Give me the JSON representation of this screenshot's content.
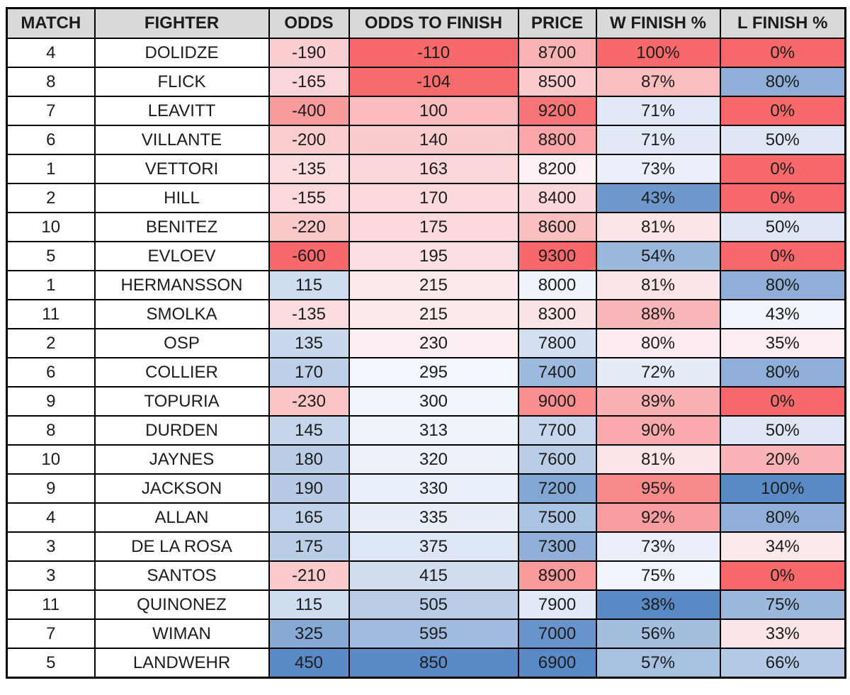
{
  "styles": {
    "header_bg": "#D9D9D9",
    "default_cell_bg": "#FFFFFF",
    "border_color": "#000000",
    "text_color": "#1C1C1C",
    "page_bg": "#FFFFFF"
  },
  "chart_data": {
    "type": "table",
    "columns": [
      "MATCH",
      "FIGHTER",
      "ODDS",
      "ODDS TO FINISH",
      "PRICE",
      "W FINISH %",
      "L FINISH %"
    ],
    "field_order": [
      "match",
      "fighter",
      "odds",
      "odds_to_finish",
      "price",
      "w_finish_pct",
      "l_finish_pct"
    ],
    "conditional_formatting": {
      "description": "Excel-style 3-color scale applied per column",
      "min_color": "#F8696B",
      "mid_color": "#FCFCFF",
      "max_color": "#5A8AC6"
    },
    "rows": [
      {
        "match": "4",
        "fighter": "DOLIDZE",
        "odds": "-190",
        "odds_to_finish": "-110",
        "price": "8700",
        "w_finish_pct": "100%",
        "l_finish_pct": "0%",
        "cell_colors": [
          "#FFFFFF",
          "#FFFFFF",
          "#FBCFD2",
          "#F8696B",
          "#FAB3B5",
          "#F8696B",
          "#F8696B"
        ]
      },
      {
        "match": "8",
        "fighter": "FLICK",
        "odds": "-165",
        "odds_to_finish": "-104",
        "price": "8500",
        "w_finish_pct": "87%",
        "l_finish_pct": "80%",
        "cell_colors": [
          "#FFFFFF",
          "#FFFFFF",
          "#FBD5D8",
          "#F86B6D",
          "#FBCBCE",
          "#FABEC1",
          "#8FAFD9"
        ]
      },
      {
        "match": "7",
        "fighter": "LEAVITT",
        "odds": "-400",
        "odds_to_finish": "100",
        "price": "9200",
        "w_finish_pct": "71%",
        "l_finish_pct": "0%",
        "cell_colors": [
          "#FFFFFF",
          "#FFFFFF",
          "#F99B9D",
          "#FABCBE",
          "#F87577",
          "#E1E9F6",
          "#F8696B"
        ]
      },
      {
        "match": "6",
        "fighter": "VILLANTE",
        "odds": "-200",
        "odds_to_finish": "140",
        "price": "8800",
        "w_finish_pct": "71%",
        "l_finish_pct": "50%",
        "cell_colors": [
          "#FFFFFF",
          "#FFFFFF",
          "#FBCDCF",
          "#FBCCCE",
          "#FAA6A9",
          "#E1E9F6",
          "#DFE7F5"
        ]
      },
      {
        "match": "1",
        "fighter": "VETTORI",
        "odds": "-135",
        "odds_to_finish": "163",
        "price": "8200",
        "w_finish_pct": "73%",
        "l_finish_pct": "0%",
        "cell_colors": [
          "#FFFFFF",
          "#FFFFFF",
          "#FBDDE0",
          "#FBD5D7",
          "#FCF0F3",
          "#EAEFF9",
          "#F8696B"
        ]
      },
      {
        "match": "2",
        "fighter": "HILL",
        "odds": "-155",
        "odds_to_finish": "170",
        "price": "8400",
        "w_finish_pct": "43%",
        "l_finish_pct": "0%",
        "cell_colors": [
          "#FFFFFF",
          "#FFFFFF",
          "#FBD8DB",
          "#FBD8DA",
          "#FBD7DA",
          "#6F98CD",
          "#F8696B"
        ]
      },
      {
        "match": "10",
        "fighter": "BENITEZ",
        "odds": "-220",
        "odds_to_finish": "175",
        "price": "8600",
        "w_finish_pct": "81%",
        "l_finish_pct": "50%",
        "cell_colors": [
          "#FFFFFF",
          "#FFFFFF",
          "#FBC8CA",
          "#FBD9DC",
          "#FABFC1",
          "#FBE5E8",
          "#DFE7F5"
        ]
      },
      {
        "match": "5",
        "fighter": "EVLOEV",
        "odds": "-600",
        "odds_to_finish": "195",
        "price": "9300",
        "w_finish_pct": "54%",
        "l_finish_pct": "0%",
        "cell_colors": [
          "#FFFFFF",
          "#FFFFFF",
          "#F8696B",
          "#FBE1E4",
          "#F8696B",
          "#9CB8DD",
          "#F8696B"
        ]
      },
      {
        "match": "1",
        "fighter": "HERMANSSON",
        "odds": "115",
        "odds_to_finish": "215",
        "price": "8000",
        "w_finish_pct": "81%",
        "l_finish_pct": "80%",
        "cell_colors": [
          "#FFFFFF",
          "#FFFFFF",
          "#D0DDF0",
          "#FBE9EC",
          "#EFF3FA",
          "#FBE5E8",
          "#8FAFD9"
        ]
      },
      {
        "match": "11",
        "fighter": "SMOLKA",
        "odds": "-135",
        "odds_to_finish": "215",
        "price": "8300",
        "w_finish_pct": "88%",
        "l_finish_pct": "43%",
        "cell_colors": [
          "#FFFFFF",
          "#FFFFFF",
          "#FBDDE0",
          "#FBE9EC",
          "#FBE4E6",
          "#FAB7BA",
          "#F1F5FB"
        ]
      },
      {
        "match": "2",
        "fighter": "OSP",
        "odds": "135",
        "odds_to_finish": "230",
        "price": "7800",
        "w_finish_pct": "80%",
        "l_finish_pct": "35%",
        "cell_colors": [
          "#FFFFFF",
          "#FFFFFF",
          "#C9D8ED",
          "#FCEFF2",
          "#D4E0F1",
          "#FCECEF",
          "#FCEDF0"
        ]
      },
      {
        "match": "6",
        "fighter": "COLLIER",
        "odds": "170",
        "odds_to_finish": "295",
        "price": "7400",
        "w_finish_pct": "72%",
        "l_finish_pct": "80%",
        "cell_colors": [
          "#FFFFFF",
          "#FFFFFF",
          "#BDCFE9",
          "#F3F6FC",
          "#9EBADE",
          "#E5ECF7",
          "#8FAFD9"
        ]
      },
      {
        "match": "9",
        "fighter": "TOPURIA",
        "odds": "-230",
        "odds_to_finish": "300",
        "price": "9000",
        "w_finish_pct": "89%",
        "l_finish_pct": "0%",
        "cell_colors": [
          "#FFFFFF",
          "#FFFFFF",
          "#FBC5C8",
          "#F2F5FB",
          "#F98E90",
          "#FAB1B3",
          "#F8696B"
        ]
      },
      {
        "match": "8",
        "fighter": "DURDEN",
        "odds": "145",
        "odds_to_finish": "313",
        "price": "7700",
        "w_finish_pct": "90%",
        "l_finish_pct": "50%",
        "cell_colors": [
          "#FFFFFF",
          "#FFFFFF",
          "#C5D6EC",
          "#EEF2FA",
          "#C6D6EC",
          "#FAAAAD",
          "#DFE7F5"
        ]
      },
      {
        "match": "10",
        "fighter": "JAYNES",
        "odds": "180",
        "odds_to_finish": "320",
        "price": "7600",
        "w_finish_pct": "81%",
        "l_finish_pct": "20%",
        "cell_colors": [
          "#FFFFFF",
          "#FFFFFF",
          "#B9CDE7",
          "#ECF1F9",
          "#B9CDE7",
          "#FBE5E8",
          "#FAB4B7"
        ]
      },
      {
        "match": "9",
        "fighter": "JACKSON",
        "odds": "190",
        "odds_to_finish": "330",
        "price": "7200",
        "w_finish_pct": "95%",
        "l_finish_pct": "100%",
        "cell_colors": [
          "#FFFFFF",
          "#FFFFFF",
          "#B6CAE6",
          "#E9EFF8",
          "#83A7D4",
          "#F98A8C",
          "#5A8AC6"
        ]
      },
      {
        "match": "4",
        "fighter": "ALLAN",
        "odds": "165",
        "odds_to_finish": "335",
        "price": "7500",
        "w_finish_pct": "92%",
        "l_finish_pct": "80%",
        "cell_colors": [
          "#FFFFFF",
          "#FFFFFF",
          "#BED1E9",
          "#E8EEF8",
          "#ABC3E3",
          "#F99DA0",
          "#8FAFD9"
        ]
      },
      {
        "match": "3",
        "fighter": "DE LA ROSA",
        "odds": "175",
        "odds_to_finish": "375",
        "price": "7300",
        "w_finish_pct": "73%",
        "l_finish_pct": "34%",
        "cell_colors": [
          "#FFFFFF",
          "#FFFFFF",
          "#BBCEE8",
          "#DDE6F4",
          "#90B0D9",
          "#EAEFF9",
          "#FBE9EC"
        ]
      },
      {
        "match": "3",
        "fighter": "SANTOS",
        "odds": "-210",
        "odds_to_finish": "415",
        "price": "8900",
        "w_finish_pct": "75%",
        "l_finish_pct": "0%",
        "cell_colors": [
          "#FFFFFF",
          "#FFFFFF",
          "#FBCACD",
          "#D2DEF0",
          "#F99A9C",
          "#F2F5FB",
          "#F8696B"
        ]
      },
      {
        "match": "11",
        "fighter": "QUINONEZ",
        "odds": "115",
        "odds_to_finish": "505",
        "price": "7900",
        "w_finish_pct": "38%",
        "l_finish_pct": "75%",
        "cell_colors": [
          "#FFFFFF",
          "#FFFFFF",
          "#D0DDF0",
          "#B9CDE7",
          "#E1E9F6",
          "#5A8AC6",
          "#9CB9DD"
        ]
      },
      {
        "match": "7",
        "fighter": "WIMAN",
        "odds": "325",
        "odds_to_finish": "595",
        "price": "7000",
        "w_finish_pct": "56%",
        "l_finish_pct": "33%",
        "cell_colors": [
          "#FFFFFF",
          "#FFFFFF",
          "#86A9D5",
          "#A0BBDF",
          "#6894CB",
          "#A4BEE0",
          "#FBE5E8"
        ]
      },
      {
        "match": "5",
        "fighter": "LANDWEHR",
        "odds": "450",
        "odds_to_finish": "850",
        "price": "6900",
        "w_finish_pct": "57%",
        "l_finish_pct": "66%",
        "cell_colors": [
          "#FFFFFF",
          "#FFFFFF",
          "#5A8AC6",
          "#5A8AC6",
          "#5A8AC6",
          "#A8C1E1",
          "#B4CAE6"
        ]
      }
    ]
  }
}
